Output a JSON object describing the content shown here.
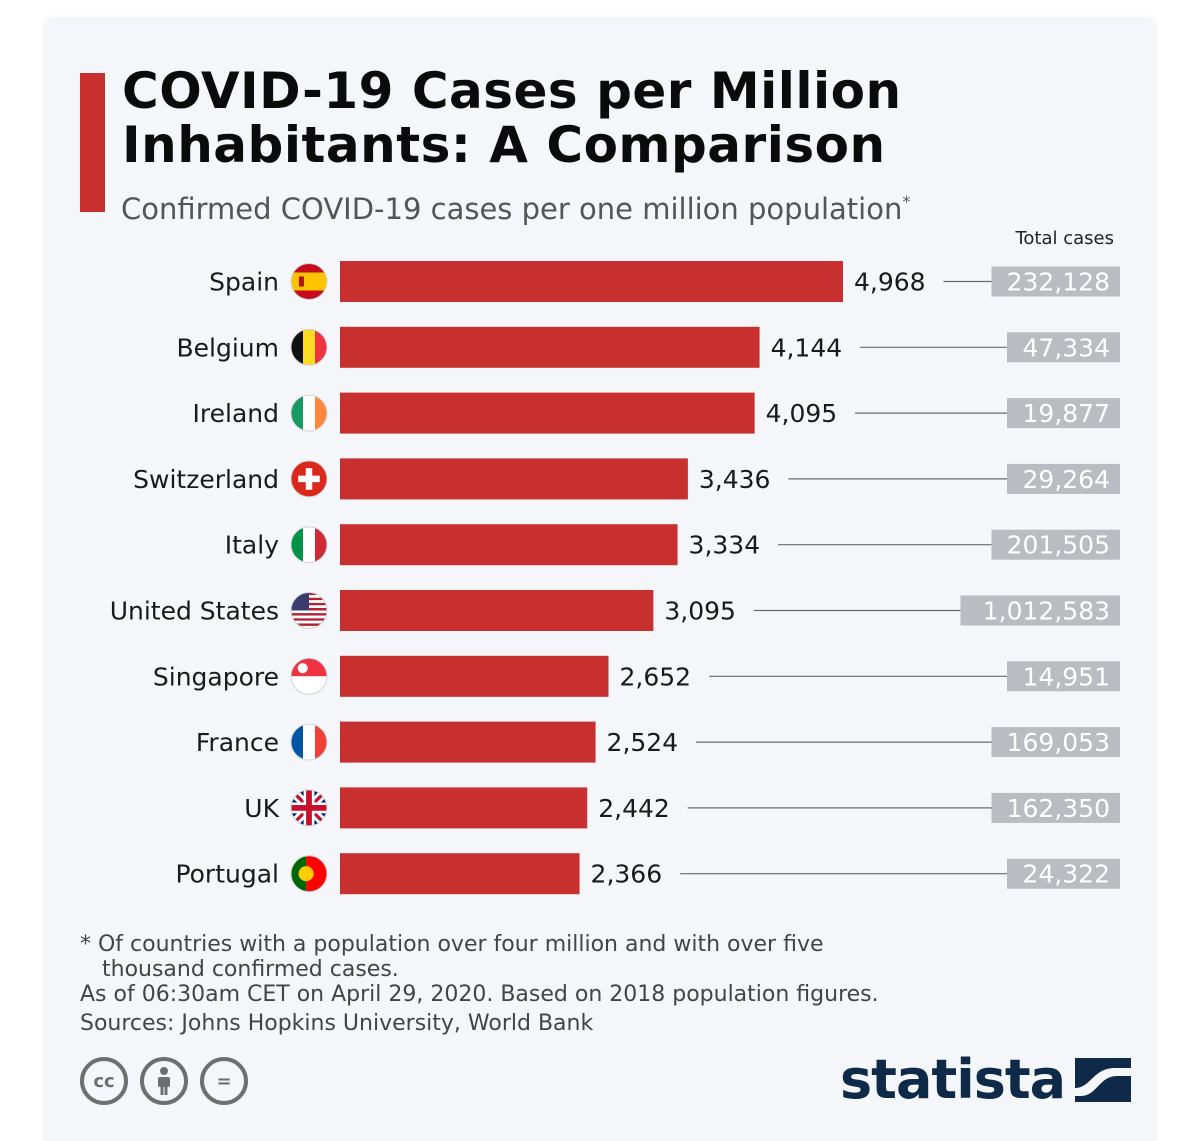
{
  "header": {
    "title_line1": "COVID-19 Cases per Million",
    "title_line2": "Inhabitants: A Comparison",
    "subtitle": "Confirmed COVID-19 cases per one million population",
    "subtitle_mark": "*",
    "total_header": "Total cases"
  },
  "colors": {
    "bar": "#c8302f",
    "accent": "#c8302f",
    "total_box": "#b9bcc0",
    "brand": "#0f2a48"
  },
  "chart_data": {
    "type": "bar",
    "orientation": "horizontal",
    "title": "COVID-19 Cases per Million Inhabitants: A Comparison",
    "subtitle": "Confirmed COVID-19 cases per one million population*",
    "categories": [
      "Spain",
      "Belgium",
      "Ireland",
      "Switzerland",
      "Italy",
      "United States",
      "Singapore",
      "France",
      "UK",
      "Portugal"
    ],
    "flag_icons": [
      "spain-flag-icon",
      "belgium-flag-icon",
      "ireland-flag-icon",
      "switzerland-flag-icon",
      "italy-flag-icon",
      "us-flag-icon",
      "singapore-flag-icon",
      "france-flag-icon",
      "uk-flag-icon",
      "portugal-flag-icon"
    ],
    "values": [
      4968,
      4144,
      4095,
      3436,
      3334,
      3095,
      2652,
      2524,
      2442,
      2366
    ],
    "value_labels": [
      "4,968",
      "4,144",
      "4,095",
      "3,436",
      "3,334",
      "3,095",
      "2,652",
      "2,524",
      "2,442",
      "2,366"
    ],
    "total_cases": [
      232128,
      47334,
      19877,
      29264,
      201505,
      1012583,
      14951,
      169053,
      162350,
      24322
    ],
    "total_labels": [
      "232,128",
      "47,334",
      "19,877",
      "29,264",
      "201,505",
      "1,012,583",
      "14,951",
      "169,053",
      "162,350",
      "24,322"
    ],
    "total_header": "Total cases",
    "xlim": [
      0,
      5000
    ]
  },
  "footnotes": {
    "line1": "* Of countries with a population over four million and with over five",
    "line2": "thousand confirmed cases.",
    "line3": "As of 06:30am CET on April 29, 2020. Based on 2018 population figures.",
    "sources": "Sources: Johns Hopkins University, World Bank"
  },
  "license": {
    "cc": "cc",
    "nd": "="
  },
  "brand": {
    "name": "statista"
  }
}
